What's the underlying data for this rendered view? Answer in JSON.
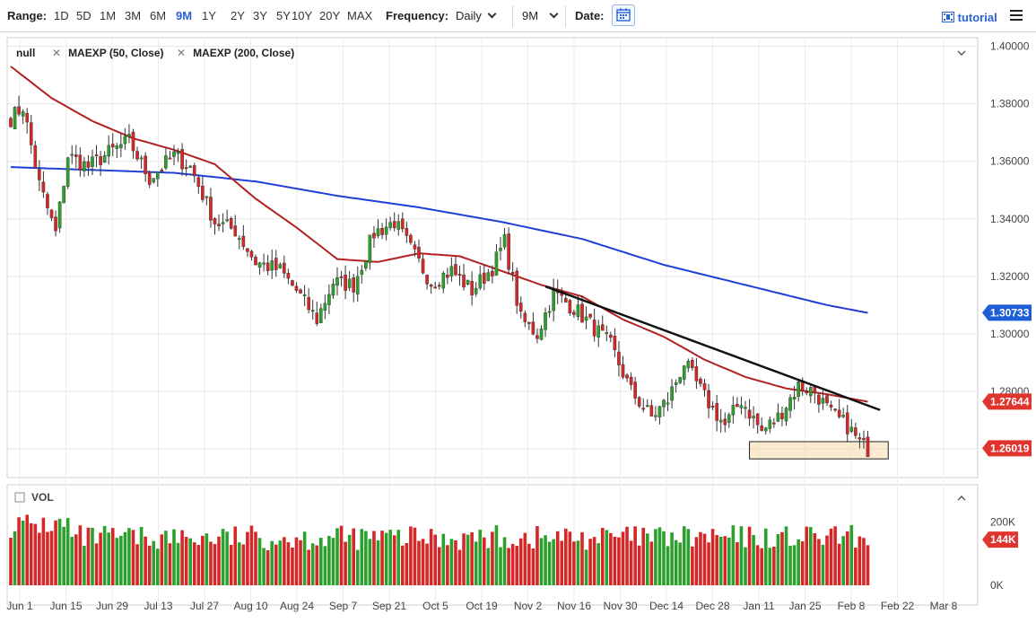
{
  "toolbar": {
    "range_label": "Range:",
    "ranges": [
      "1D",
      "5D",
      "1M",
      "3M",
      "6M",
      "9M",
      "1Y",
      "2Y",
      "3Y",
      "5Y",
      "10Y",
      "20Y",
      "MAX"
    ],
    "active_range": "9M",
    "frequency_label": "Frequency:",
    "frequency_value": "Daily",
    "period_value": "9M",
    "date_label": "Date:",
    "calendar_icon": "calendar-icon",
    "tutorial_label": "tutorial",
    "menu_icon": "hamburger-menu-icon"
  },
  "legend": {
    "main": "null",
    "ma50": "MAEXP (50, Close)",
    "ma200": "MAEXP (200, Close)"
  },
  "colors": {
    "up": "#2ca02c",
    "down": "#d62728",
    "ma50": "#b22222",
    "ma200": "#1f3fd6",
    "trendline": "#111111",
    "support_zone": "#f5d9a8",
    "tag_ma200": "#1f5fd6",
    "tag_red": "#e0352f"
  },
  "chart_data": {
    "type": "candlestick",
    "y_ticks": [
      "1.40000",
      "1.38000",
      "1.36000",
      "1.34000",
      "1.32000",
      "1.30000",
      "1.28000",
      "1.26000"
    ],
    "ylim": [
      1.25,
      1.403
    ],
    "x_ticks": [
      "Jun 1",
      "Jun 15",
      "Jun 29",
      "Jul 13",
      "Jul 27",
      "Aug 10",
      "Aug 24",
      "Sep 7",
      "Sep 21",
      "Oct 5",
      "Oct 19",
      "Nov 2",
      "Nov 16",
      "Nov 30",
      "Dec 14",
      "Dec 28",
      "Jan 11",
      "Jan 25",
      "Feb 8",
      "Feb 22",
      "Mar 8"
    ],
    "price_tags": {
      "ma200": "1.30733",
      "ma50": "1.27644",
      "last": "1.26019"
    },
    "anchors": [
      {
        "d": 0,
        "v": 1.375
      },
      {
        "d": 3,
        "v": 1.379
      },
      {
        "d": 7,
        "v": 1.352
      },
      {
        "d": 11,
        "v": 1.335
      },
      {
        "d": 14,
        "v": 1.362
      },
      {
        "d": 19,
        "v": 1.358
      },
      {
        "d": 24,
        "v": 1.363
      },
      {
        "d": 29,
        "v": 1.367
      },
      {
        "d": 34,
        "v": 1.354
      },
      {
        "d": 40,
        "v": 1.362
      },
      {
        "d": 44,
        "v": 1.358
      },
      {
        "d": 50,
        "v": 1.339
      },
      {
        "d": 55,
        "v": 1.336
      },
      {
        "d": 60,
        "v": 1.325
      },
      {
        "d": 66,
        "v": 1.322
      },
      {
        "d": 70,
        "v": 1.315
      },
      {
        "d": 75,
        "v": 1.305
      },
      {
        "d": 79,
        "v": 1.318
      },
      {
        "d": 84,
        "v": 1.317
      },
      {
        "d": 89,
        "v": 1.335
      },
      {
        "d": 94,
        "v": 1.339
      },
      {
        "d": 99,
        "v": 1.327
      },
      {
        "d": 103,
        "v": 1.318
      },
      {
        "d": 108,
        "v": 1.322
      },
      {
        "d": 113,
        "v": 1.315
      },
      {
        "d": 118,
        "v": 1.323
      },
      {
        "d": 121,
        "v": 1.332
      },
      {
        "d": 125,
        "v": 1.305
      },
      {
        "d": 129,
        "v": 1.3
      },
      {
        "d": 133,
        "v": 1.314
      },
      {
        "d": 138,
        "v": 1.309
      },
      {
        "d": 143,
        "v": 1.302
      },
      {
        "d": 147,
        "v": 1.296
      },
      {
        "d": 152,
        "v": 1.28
      },
      {
        "d": 157,
        "v": 1.271
      },
      {
        "d": 161,
        "v": 1.277
      },
      {
        "d": 165,
        "v": 1.29
      },
      {
        "d": 170,
        "v": 1.278
      },
      {
        "d": 175,
        "v": 1.268
      },
      {
        "d": 179,
        "v": 1.277
      },
      {
        "d": 184,
        "v": 1.266
      },
      {
        "d": 188,
        "v": 1.271
      },
      {
        "d": 193,
        "v": 1.282
      },
      {
        "d": 197,
        "v": 1.28
      },
      {
        "d": 201,
        "v": 1.272
      },
      {
        "d": 205,
        "v": 1.268
      },
      {
        "d": 208,
        "v": 1.262
      },
      {
        "d": 210,
        "v": 1.26
      }
    ],
    "ma50": [
      {
        "d": 0,
        "v": 1.393
      },
      {
        "d": 10,
        "v": 1.382
      },
      {
        "d": 20,
        "v": 1.374
      },
      {
        "d": 30,
        "v": 1.368
      },
      {
        "d": 40,
        "v": 1.364
      },
      {
        "d": 50,
        "v": 1.359
      },
      {
        "d": 60,
        "v": 1.347
      },
      {
        "d": 70,
        "v": 1.337
      },
      {
        "d": 80,
        "v": 1.326
      },
      {
        "d": 90,
        "v": 1.325
      },
      {
        "d": 100,
        "v": 1.328
      },
      {
        "d": 110,
        "v": 1.327
      },
      {
        "d": 120,
        "v": 1.322
      },
      {
        "d": 130,
        "v": 1.317
      },
      {
        "d": 140,
        "v": 1.313
      },
      {
        "d": 150,
        "v": 1.305
      },
      {
        "d": 160,
        "v": 1.299
      },
      {
        "d": 170,
        "v": 1.291
      },
      {
        "d": 180,
        "v": 1.285
      },
      {
        "d": 190,
        "v": 1.281
      },
      {
        "d": 200,
        "v": 1.279
      },
      {
        "d": 210,
        "v": 1.2764
      }
    ],
    "ma200": [
      {
        "d": 0,
        "v": 1.358
      },
      {
        "d": 20,
        "v": 1.357
      },
      {
        "d": 40,
        "v": 1.356
      },
      {
        "d": 60,
        "v": 1.353
      },
      {
        "d": 80,
        "v": 1.348
      },
      {
        "d": 100,
        "v": 1.344
      },
      {
        "d": 120,
        "v": 1.339
      },
      {
        "d": 140,
        "v": 1.333
      },
      {
        "d": 160,
        "v": 1.324
      },
      {
        "d": 180,
        "v": 1.317
      },
      {
        "d": 200,
        "v": 1.31
      },
      {
        "d": 210,
        "v": 1.3073
      }
    ],
    "trendline": [
      {
        "d": 131,
        "v": 1.3165
      },
      {
        "d": 213,
        "v": 1.2735
      }
    ],
    "support_zone": {
      "d_start": 181,
      "d_end": 215,
      "v_low": 1.2565,
      "v_high": 1.2625
    },
    "volume": {
      "label": "VOL",
      "ticks": [
        "200K",
        "0K"
      ],
      "max_k": 300,
      "last_tag": "144K"
    }
  }
}
